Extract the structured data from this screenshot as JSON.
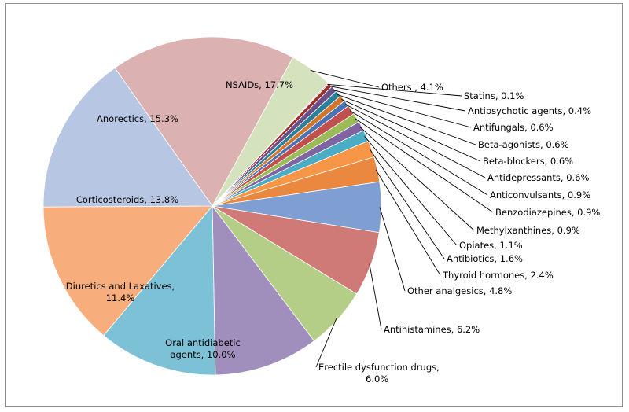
{
  "chart_data": {
    "type": "pie",
    "title": "",
    "slices": [
      {
        "label": "NSAIDs, 17.7%",
        "value": 17.7,
        "color": "#dbb1b1"
      },
      {
        "label": "Others , 4.1%",
        "value": 4.1,
        "color": "#d5e2be"
      },
      {
        "label": "Statins, 0.1%",
        "value": 0.1,
        "color": "#c9a3a3"
      },
      {
        "label": "Antipsychotic agents, 0.4%",
        "value": 0.4,
        "color": "#9b2d2a"
      },
      {
        "label": "Antifungals, 0.6%",
        "value": 0.6,
        "color": "#6b4f88"
      },
      {
        "label": "Beta-agonists, 0.6%",
        "value": 0.6,
        "color": "#2c7f9a"
      },
      {
        "label": "Beta-blockers, 0.6%",
        "value": 0.6,
        "color": "#d0772c"
      },
      {
        "label": "Antidepressants, 0.6%",
        "value": 0.6,
        "color": "#4a72b3"
      },
      {
        "label": "Anticonvulsants, 0.9%",
        "value": 0.9,
        "color": "#c0504d"
      },
      {
        "label": "Benzodiazepines, 0.9%",
        "value": 0.9,
        "color": "#9bbb59"
      },
      {
        "label": "Methylxanthines, 0.9%",
        "value": 0.9,
        "color": "#8064a2"
      },
      {
        "label": "Opiates, 1.1%",
        "value": 1.1,
        "color": "#4bacc6"
      },
      {
        "label": "Antibiotics, 1.6%",
        "value": 1.6,
        "color": "#f79646"
      },
      {
        "label": "Thyroid hormones, 2.4%",
        "value": 2.4,
        "color": "#e9883e"
      },
      {
        "label": "Other analgesics, 4.8%",
        "value": 4.8,
        "color": "#7f9ed1"
      },
      {
        "label": "Antihistamines, 6.2%",
        "value": 6.2,
        "color": "#d07a77"
      },
      {
        "label": "Erectile dysfunction drugs, 6.0%",
        "value": 6.0,
        "color": "#b4cd87"
      },
      {
        "label": "Oral antidiabetic agents, 10.0%",
        "value": 10.0,
        "color": "#a08fbd"
      },
      {
        "label": "Diuretics and Laxatives, 11.4%",
        "value": 11.4,
        "color": "#7dc1d6"
      },
      {
        "label": "Corticosteroids, 13.8%",
        "value": 13.8,
        "color": "#f8ae7c"
      },
      {
        "label": "Anorectics, 15.3%",
        "value": 15.3,
        "color": "#b7c6e2"
      }
    ]
  }
}
